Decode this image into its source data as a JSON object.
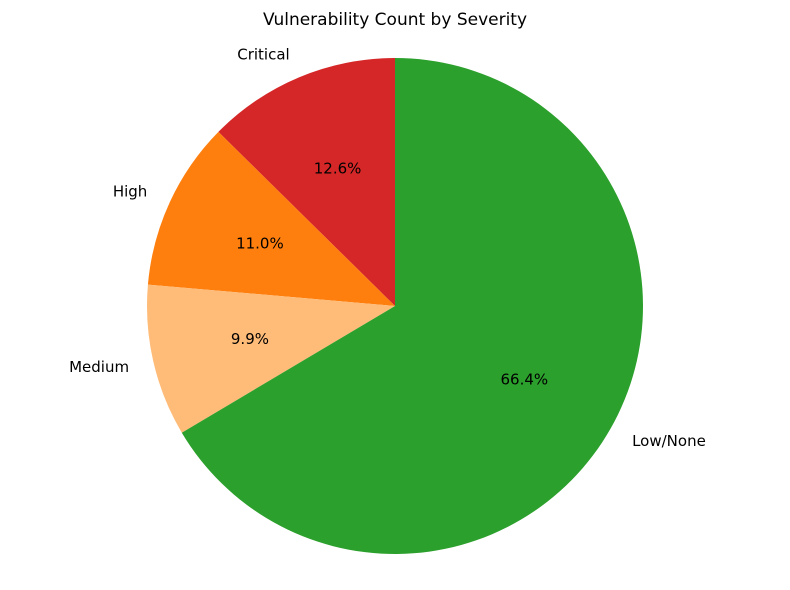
{
  "chart_data": {
    "type": "pie",
    "title": "Vulnerability Count by Severity",
    "start_angle_deg": 90,
    "direction": "counterclockwise",
    "slices": [
      {
        "label": "Critical",
        "percent": 12.6,
        "percent_label": "12.6%",
        "color": "#d62728"
      },
      {
        "label": "High",
        "percent": 11.0,
        "percent_label": "11.0%",
        "color": "#ff7f0e"
      },
      {
        "label": "Medium",
        "percent": 9.9,
        "percent_label": "9.9%",
        "color": "#ffbb78"
      },
      {
        "label": "Low/None",
        "percent": 66.4,
        "percent_label": "66.4%",
        "color": "#2ca02c"
      }
    ]
  }
}
